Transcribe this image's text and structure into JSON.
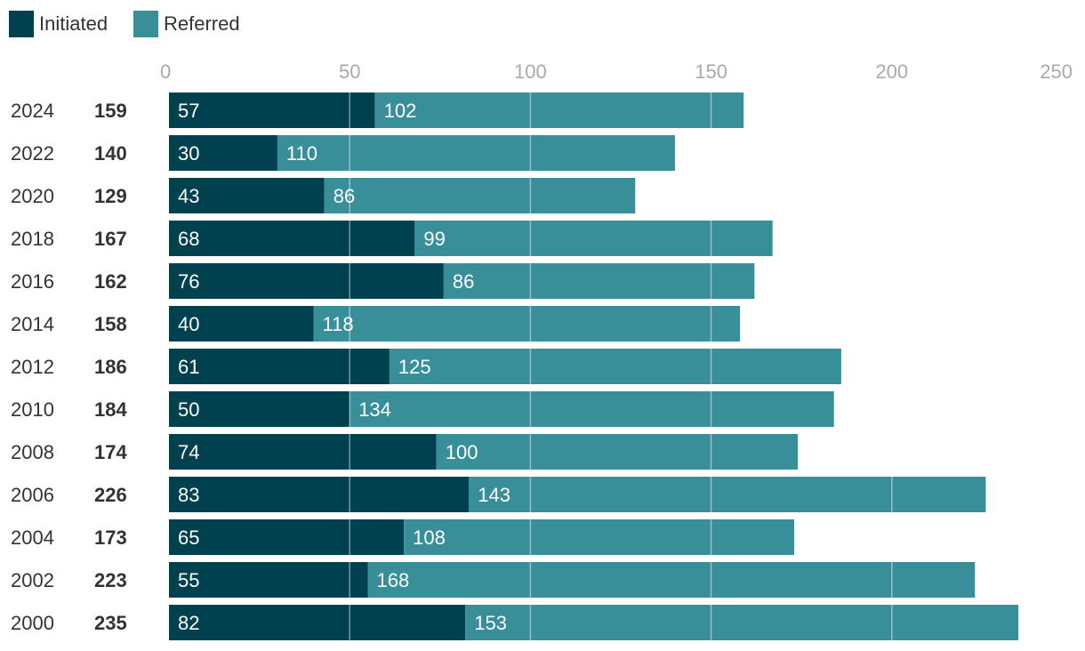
{
  "chart_data": {
    "type": "bar",
    "orientation": "horizontal",
    "stacked": true,
    "categories": [
      "2024",
      "2022",
      "2020",
      "2018",
      "2016",
      "2014",
      "2012",
      "2010",
      "2008",
      "2006",
      "2004",
      "2002",
      "2000"
    ],
    "totals": [
      "159",
      "140",
      "129",
      "167",
      "162",
      "158",
      "186",
      "184",
      "174",
      "226",
      "173",
      "223",
      "235"
    ],
    "series": [
      {
        "name": "Initiated",
        "color": "#00414f",
        "values": [
          57,
          30,
          43,
          68,
          76,
          40,
          61,
          50,
          74,
          83,
          65,
          55,
          82
        ]
      },
      {
        "name": "Referred",
        "color": "#388f99",
        "values": [
          102,
          110,
          86,
          99,
          86,
          118,
          125,
          134,
          100,
          143,
          108,
          168,
          153
        ]
      }
    ],
    "xlim": [
      0,
      250
    ],
    "xticks": [
      "0",
      "50",
      "100",
      "150",
      "200",
      "250"
    ],
    "legend_position": "top-left",
    "grid": true
  }
}
